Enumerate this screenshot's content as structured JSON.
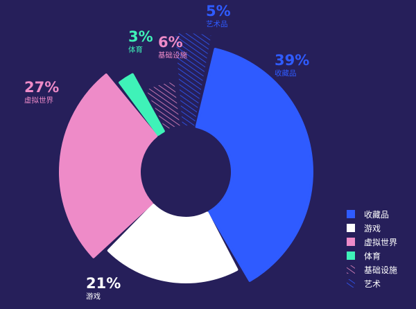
{
  "background": "#261f5a",
  "chart_data": {
    "type": "pie",
    "variant": "exploded-donut",
    "title": "",
    "slices": [
      {
        "label": "收藏品",
        "value": 39,
        "display": "39%",
        "color": "#2f5bff",
        "pattern": "solid"
      },
      {
        "label": "游戏",
        "value": 21,
        "display": "21%",
        "color": "#ffffff",
        "pattern": "solid"
      },
      {
        "label": "虚拟世界",
        "value": 27,
        "display": "27%",
        "color": "#ee8bc8",
        "pattern": "solid"
      },
      {
        "label": "体育",
        "value": 3,
        "display": "3%",
        "color": "#3ff2b8",
        "pattern": "solid"
      },
      {
        "label": "基础设施",
        "value": 6,
        "display": "6%",
        "color": "#e88bc3",
        "pattern": "hatched"
      },
      {
        "label": "艺术品",
        "value": 5,
        "display": "5%",
        "color": "#2f5bff",
        "pattern": "hatched"
      }
    ],
    "legend": {
      "position": "bottom-right",
      "entries": [
        "收藏品",
        "游戏",
        "虚拟世界",
        "体育",
        "基础设施",
        "艺术"
      ]
    }
  }
}
